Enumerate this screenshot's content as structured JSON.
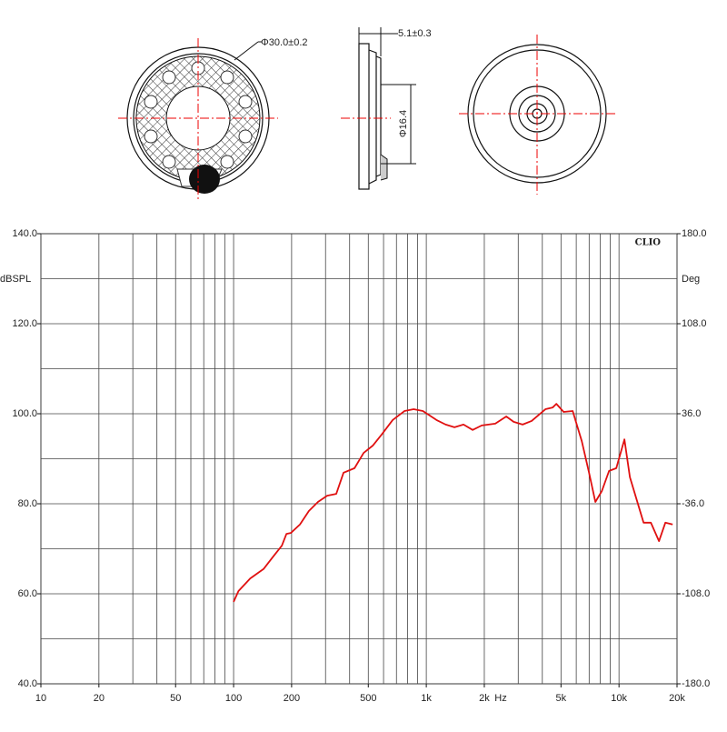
{
  "drawing": {
    "outer_diameter": "Φ30.0±0.2",
    "thickness": "5.1±0.3",
    "inner_diameter": "Φ16.4"
  },
  "chart_data": {
    "type": "line",
    "watermark": "CLIO",
    "ylabel": "dBSPL",
    "y2label": "Deg",
    "xlabel": "Hz",
    "xlog": true,
    "xlim": [
      10,
      20000
    ],
    "ylim": [
      40,
      140
    ],
    "y2lim": [
      -180,
      180
    ],
    "xticks": [
      10,
      20,
      50,
      100,
      200,
      500,
      {
        "value": 1000,
        "label": "1k"
      },
      {
        "value": 2000,
        "label": "2k"
      },
      {
        "value": 5000,
        "label": "5k"
      },
      {
        "value": 10000,
        "label": "10k"
      },
      {
        "value": 20000,
        "label": "20k"
      }
    ],
    "x_grid": [
      10,
      20,
      30,
      40,
      50,
      60,
      70,
      80,
      90,
      100,
      200,
      300,
      400,
      500,
      600,
      700,
      800,
      900,
      1000,
      2000,
      3000,
      4000,
      5000,
      6000,
      7000,
      8000,
      9000,
      10000,
      20000
    ],
    "yticks": [
      {
        "value": 140,
        "label": "140.0"
      },
      {
        "value": 120,
        "label": "120.0"
      },
      {
        "value": 100,
        "label": "100.0"
      },
      {
        "value": 80,
        "label": "80.0"
      },
      {
        "value": 60,
        "label": "60.0"
      },
      {
        "value": 40,
        "label": "40.0"
      }
    ],
    "y_grid": [
      40,
      50,
      60,
      70,
      80,
      90,
      100,
      110,
      120,
      130,
      140
    ],
    "y2ticks": [
      {
        "value": 180,
        "label": "180.0"
      },
      {
        "value": 108,
        "label": "108.0"
      },
      {
        "value": 36,
        "label": "36.0"
      },
      {
        "value": -36,
        "label": "-36.0"
      },
      {
        "value": -108,
        "label": "-108.0"
      },
      {
        "value": -180,
        "label": "-180.0"
      }
    ],
    "color": "#e01010",
    "x": [
      100,
      106,
      122,
      143,
      160,
      178,
      188,
      198,
      221,
      246,
      274,
      306,
      341,
      372,
      424,
      473,
      527,
      587,
      669,
      770,
      860,
      960,
      1130,
      1260,
      1400,
      1560,
      1740,
      1940,
      2280,
      2600,
      2840,
      3160,
      3520,
      4150,
      4530,
      4730,
      5160,
      5750,
      6410,
      6990,
      7540,
      8140,
      8880,
      9680,
      10670,
      11390,
      12290,
      13410,
      14630,
      16130,
      17400,
      18980
    ],
    "values": [
      58.2,
      60.6,
      63.4,
      65.5,
      68.2,
      70.7,
      73.3,
      73.5,
      75.4,
      78.4,
      80.4,
      81.8,
      82.2,
      86.9,
      87.9,
      91.3,
      92.9,
      95.4,
      98.6,
      100.6,
      101.0,
      100.6,
      98.6,
      97.6,
      97.0,
      97.6,
      96.4,
      97.4,
      97.8,
      99.4,
      98.2,
      97.6,
      98.4,
      101.0,
      101.4,
      102.2,
      100.4,
      100.6,
      93.9,
      86.9,
      80.4,
      82.8,
      87.3,
      87.9,
      94.3,
      85.9,
      81.2,
      75.8,
      75.8,
      71.7,
      75.8,
      75.4
    ]
  }
}
